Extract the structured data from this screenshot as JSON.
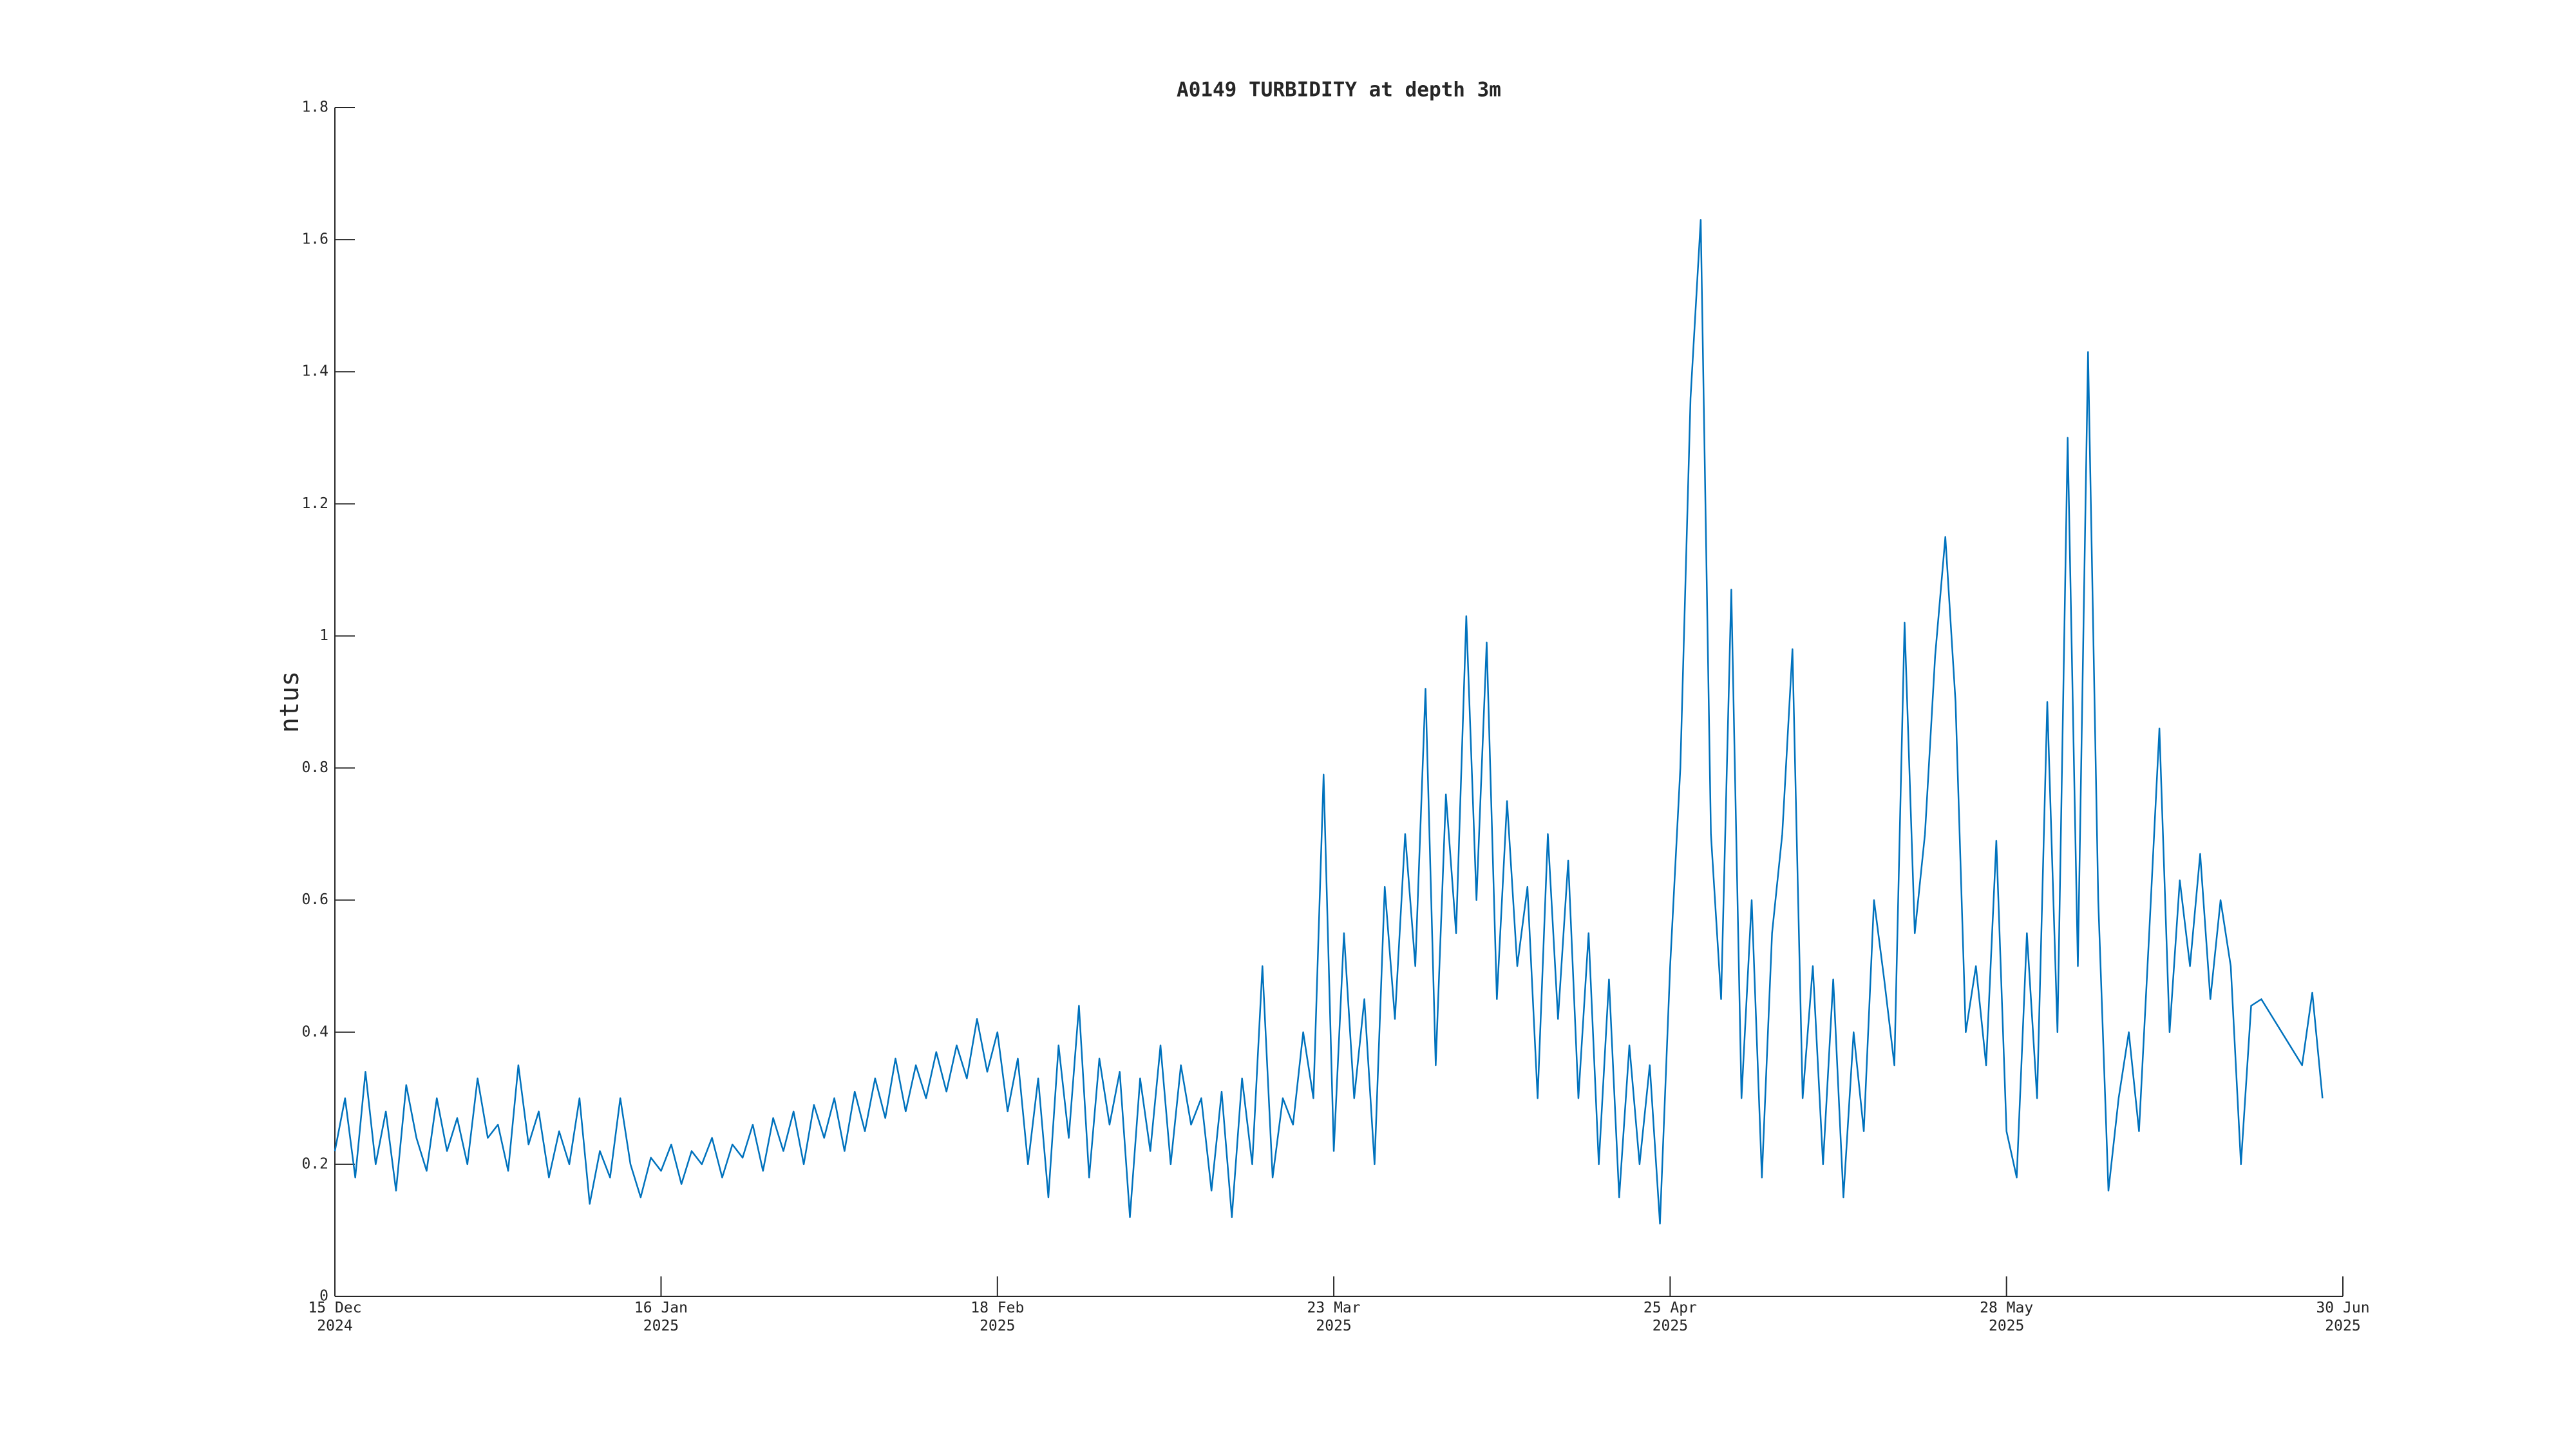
{
  "chart_data": {
    "type": "line",
    "title": "A0149 TURBIDITY at depth 3m",
    "y_label": "ntus",
    "color": "#0072bd",
    "xlim": [
      "2024-12-15",
      "2025-06-30"
    ],
    "xticks": [
      {
        "value": "2024-12-15",
        "label": "15 Dec\n2024"
      },
      {
        "value": "2025-01-16",
        "label": "16 Jan\n2025"
      },
      {
        "value": "2025-02-18",
        "label": "18 Feb\n2025"
      },
      {
        "value": "2025-03-23",
        "label": "23 Mar\n2025"
      },
      {
        "value": "2025-04-25",
        "label": "25 Apr\n2025"
      },
      {
        "value": "2025-05-28",
        "label": "28 May\n2025"
      },
      {
        "value": "2025-06-30",
        "label": "30 Jun\n2025"
      }
    ],
    "ylim": [
      0,
      1.8
    ],
    "yticks": [
      0,
      0.2,
      0.4,
      0.6,
      0.8,
      1,
      1.2,
      1.4,
      1.6,
      1.8
    ],
    "x": [
      "2024-12-15",
      "2024-12-16",
      "2024-12-17",
      "2024-12-18",
      "2024-12-19",
      "2024-12-20",
      "2024-12-21",
      "2024-12-22",
      "2024-12-23",
      "2024-12-24",
      "2024-12-25",
      "2024-12-26",
      "2024-12-27",
      "2024-12-28",
      "2024-12-29",
      "2024-12-30",
      "2024-12-31",
      "2025-01-01",
      "2025-01-02",
      "2025-01-03",
      "2025-01-04",
      "2025-01-05",
      "2025-01-06",
      "2025-01-07",
      "2025-01-08",
      "2025-01-09",
      "2025-01-10",
      "2025-01-11",
      "2025-01-12",
      "2025-01-13",
      "2025-01-14",
      "2025-01-15",
      "2025-01-16",
      "2025-01-17",
      "2025-01-18",
      "2025-01-19",
      "2025-01-20",
      "2025-01-21",
      "2025-01-22",
      "2025-01-23",
      "2025-01-24",
      "2025-01-25",
      "2025-01-26",
      "2025-01-27",
      "2025-01-28",
      "2025-01-29",
      "2025-01-30",
      "2025-01-31",
      "2025-02-01",
      "2025-02-02",
      "2025-02-03",
      "2025-02-04",
      "2025-02-05",
      "2025-02-06",
      "2025-02-07",
      "2025-02-08",
      "2025-02-09",
      "2025-02-10",
      "2025-02-11",
      "2025-02-12",
      "2025-02-13",
      "2025-02-14",
      "2025-02-15",
      "2025-02-16",
      "2025-02-17",
      "2025-02-18",
      "2025-02-19",
      "2025-02-20",
      "2025-02-21",
      "2025-02-22",
      "2025-02-23",
      "2025-02-24",
      "2025-02-25",
      "2025-02-26",
      "2025-02-27",
      "2025-02-28",
      "2025-03-01",
      "2025-03-02",
      "2025-03-03",
      "2025-03-04",
      "2025-03-05",
      "2025-03-06",
      "2025-03-07",
      "2025-03-08",
      "2025-03-09",
      "2025-03-10",
      "2025-03-11",
      "2025-03-12",
      "2025-03-13",
      "2025-03-14",
      "2025-03-15",
      "2025-03-16",
      "2025-03-17",
      "2025-03-18",
      "2025-03-19",
      "2025-03-20",
      "2025-03-21",
      "2025-03-22",
      "2025-03-23",
      "2025-03-24",
      "2025-03-25",
      "2025-03-26",
      "2025-03-27",
      "2025-03-28",
      "2025-03-29",
      "2025-03-30",
      "2025-03-31",
      "2025-04-01",
      "2025-04-02",
      "2025-04-03",
      "2025-04-04",
      "2025-04-05",
      "2025-04-06",
      "2025-04-07",
      "2025-04-08",
      "2025-04-09",
      "2025-04-10",
      "2025-04-11",
      "2025-04-12",
      "2025-04-13",
      "2025-04-14",
      "2025-04-15",
      "2025-04-16",
      "2025-04-17",
      "2025-04-18",
      "2025-04-19",
      "2025-04-20",
      "2025-04-21",
      "2025-04-22",
      "2025-04-23",
      "2025-04-24",
      "2025-04-25",
      "2025-04-26",
      "2025-04-27",
      "2025-04-28",
      "2025-04-29",
      "2025-04-30",
      "2025-05-01",
      "2025-05-02",
      "2025-05-03",
      "2025-05-04",
      "2025-05-05",
      "2025-05-06",
      "2025-05-07",
      "2025-05-08",
      "2025-05-09",
      "2025-05-10",
      "2025-05-11",
      "2025-05-12",
      "2025-05-13",
      "2025-05-14",
      "2025-05-15",
      "2025-05-16",
      "2025-05-17",
      "2025-05-18",
      "2025-05-19",
      "2025-05-20",
      "2025-05-21",
      "2025-05-22",
      "2025-05-23",
      "2025-05-24",
      "2025-05-25",
      "2025-05-26",
      "2025-05-27",
      "2025-05-28",
      "2025-05-29",
      "2025-05-30",
      "2025-05-31",
      "2025-06-01",
      "2025-06-02",
      "2025-06-03",
      "2025-06-04",
      "2025-06-05",
      "2025-06-06",
      "2025-06-07",
      "2025-06-08",
      "2025-06-09",
      "2025-06-10",
      "2025-06-11",
      "2025-06-12",
      "2025-06-13",
      "2025-06-14",
      "2025-06-15",
      "2025-06-16",
      "2025-06-17",
      "2025-06-18",
      "2025-06-19",
      "2025-06-20",
      "2025-06-21",
      "2025-06-22",
      "2025-06-26",
      "2025-06-27",
      "2025-06-28"
    ],
    "values": [
      0.22,
      0.3,
      0.18,
      0.34,
      0.2,
      0.28,
      0.16,
      0.32,
      0.24,
      0.19,
      0.3,
      0.22,
      0.27,
      0.2,
      0.33,
      0.24,
      0.26,
      0.19,
      0.35,
      0.23,
      0.28,
      0.18,
      0.25,
      0.2,
      0.3,
      0.14,
      0.22,
      0.18,
      0.3,
      0.2,
      0.15,
      0.21,
      0.19,
      0.23,
      0.17,
      0.22,
      0.2,
      0.24,
      0.18,
      0.23,
      0.21,
      0.26,
      0.19,
      0.27,
      0.22,
      0.28,
      0.2,
      0.29,
      0.24,
      0.3,
      0.22,
      0.31,
      0.25,
      0.33,
      0.27,
      0.36,
      0.28,
      0.35,
      0.3,
      0.37,
      0.31,
      0.38,
      0.33,
      0.42,
      0.34,
      0.4,
      0.28,
      0.36,
      0.2,
      0.33,
      0.15,
      0.38,
      0.24,
      0.44,
      0.18,
      0.36,
      0.26,
      0.34,
      0.12,
      0.33,
      0.22,
      0.38,
      0.2,
      0.35,
      0.26,
      0.3,
      0.16,
      0.31,
      0.12,
      0.33,
      0.2,
      0.5,
      0.18,
      0.3,
      0.26,
      0.4,
      0.3,
      0.79,
      0.22,
      0.55,
      0.3,
      0.45,
      0.2,
      0.62,
      0.42,
      0.7,
      0.5,
      0.92,
      0.35,
      0.76,
      0.55,
      1.03,
      0.6,
      0.99,
      0.45,
      0.75,
      0.5,
      0.62,
      0.3,
      0.7,
      0.42,
      0.66,
      0.3,
      0.55,
      0.2,
      0.48,
      0.15,
      0.38,
      0.2,
      0.35,
      0.11,
      0.5,
      0.8,
      1.36,
      1.63,
      0.7,
      0.45,
      1.07,
      0.3,
      0.6,
      0.18,
      0.55,
      0.7,
      0.98,
      0.3,
      0.5,
      0.2,
      0.48,
      0.15,
      0.4,
      0.25,
      0.6,
      0.48,
      0.35,
      1.02,
      0.55,
      0.7,
      0.97,
      1.15,
      0.9,
      0.4,
      0.5,
      0.35,
      0.69,
      0.25,
      0.18,
      0.55,
      0.3,
      0.9,
      0.4,
      1.3,
      0.5,
      1.43,
      0.6,
      0.16,
      0.3,
      0.4,
      0.25,
      0.55,
      0.86,
      0.4,
      0.63,
      0.5,
      0.67,
      0.45,
      0.6,
      0.5,
      0.2,
      0.44,
      0.45,
      0.35,
      0.46,
      0.3
    ]
  }
}
